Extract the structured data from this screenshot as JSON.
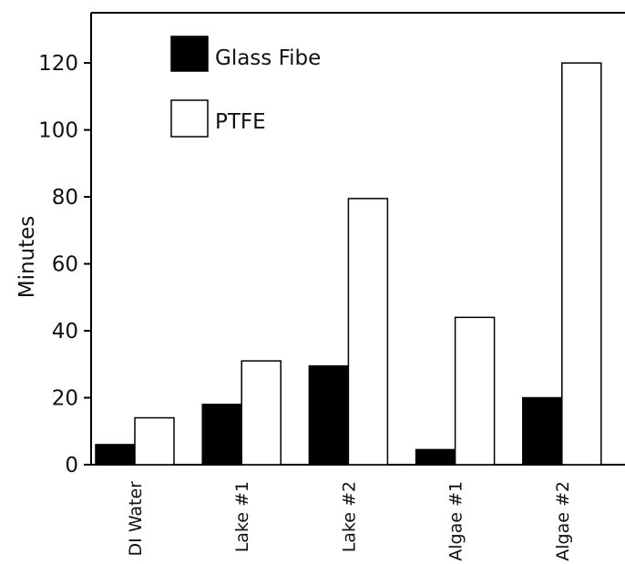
{
  "chart_data": {
    "type": "bar",
    "title": "",
    "xlabel": "",
    "ylabel": "Minutes",
    "ylim": [
      0,
      135
    ],
    "yticks": [
      0,
      20,
      40,
      60,
      80,
      100,
      120
    ],
    "categories": [
      "DI Water",
      "Lake #1",
      "Lake #2",
      "Algae #1",
      "Algae #2"
    ],
    "series": [
      {
        "name": "Glass Fibe",
        "values": [
          6,
          18,
          29.5,
          4.5,
          20
        ],
        "color": "#000000"
      },
      {
        "name": "PTFE",
        "values": [
          14,
          31,
          79.5,
          44,
          120
        ],
        "color": "#ffffff"
      }
    ],
    "legend_position": "top-left",
    "grid": false
  }
}
